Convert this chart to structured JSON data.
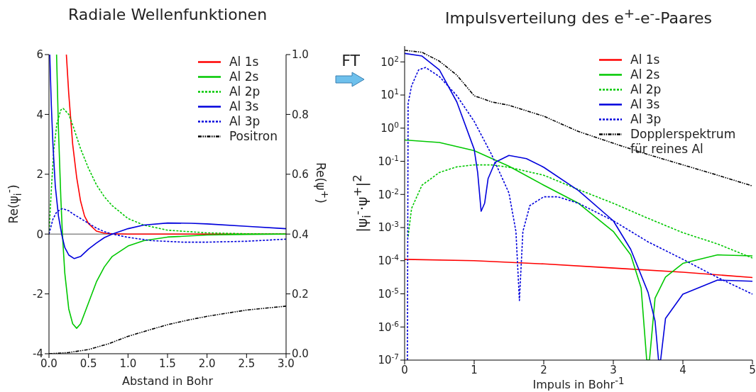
{
  "chart_data": [
    {
      "type": "line",
      "title": "Radiale Wellenfunktionen",
      "xlabel": "Abstand in Bohr",
      "ylabel": "Re(ψ$_{i}$$^{-}$)",
      "y2label": "Re(ψ$^{+}$)",
      "annotations": [
        "FT"
      ],
      "legend": "top right",
      "xlim": [
        0,
        3
      ],
      "xticks": [
        {
          "value": 0,
          "label": "0.0"
        },
        {
          "value": 0.5,
          "label": "0.5"
        },
        {
          "value": 1,
          "label": "1.0"
        },
        {
          "value": 1.5,
          "label": "1.5"
        },
        {
          "value": 2,
          "label": "2.0"
        },
        {
          "value": 2.5,
          "label": "2.5"
        },
        {
          "value": 3,
          "label": "3.0"
        }
      ],
      "ylim": [
        -4,
        6
      ],
      "yticks": [
        -4,
        -2,
        0,
        2,
        4,
        6
      ],
      "y2lim": [
        0,
        1
      ],
      "y2ticks": [
        {
          "value": 0,
          "label": "0.0"
        },
        0.2,
        0.4,
        0.6,
        0.8,
        {
          "value": 1,
          "label": "1.0"
        }
      ],
      "ref_lines": [
        {
          "axis": "y",
          "value": 0,
          "color": "#555555"
        }
      ],
      "series": [
        {
          "name": "Al 1s",
          "color": "#ff0000",
          "line_style": "solid",
          "x": [
            0.22,
            0.25,
            0.3,
            0.35,
            0.4,
            0.45,
            0.5,
            0.6,
            0.7,
            0.8,
            1.0,
            1.5,
            2.0,
            2.5,
            3.0
          ],
          "values": [
            6.0,
            4.7,
            3.0,
            1.9,
            1.1,
            0.6,
            0.35,
            0.1,
            0.03,
            0.01,
            0,
            0,
            0,
            0,
            0
          ]
        },
        {
          "name": "Al 2s",
          "color": "#00c800",
          "line_style": "solid",
          "x": [
            0.096,
            0.12,
            0.15,
            0.17,
            0.2,
            0.25,
            0.3,
            0.35,
            0.4,
            0.5,
            0.6,
            0.7,
            0.8,
            1.0,
            1.2,
            1.5,
            2.0,
            2.5,
            3.0
          ],
          "values": [
            6.0,
            3.5,
            1.2,
            0,
            -1.3,
            -2.5,
            -3.0,
            -3.15,
            -3.0,
            -2.3,
            -1.6,
            -1.1,
            -0.75,
            -0.4,
            -0.22,
            -0.1,
            -0.03,
            -0.01,
            0
          ]
        },
        {
          "name": "Al 2p",
          "color": "#00c800",
          "line_style": "dashed",
          "x": [
            0,
            0.03,
            0.06,
            0.1,
            0.15,
            0.18,
            0.25,
            0.3,
            0.4,
            0.5,
            0.6,
            0.7,
            0.8,
            1.0,
            1.2,
            1.5,
            2.0,
            2.5,
            3.0
          ],
          "values": [
            0,
            1.5,
            2.8,
            3.7,
            4.15,
            4.2,
            4.0,
            3.65,
            2.85,
            2.2,
            1.65,
            1.25,
            0.95,
            0.52,
            0.3,
            0.13,
            0.04,
            0.01,
            0
          ]
        },
        {
          "name": "Al 3s",
          "color": "#0000dc",
          "line_style": "solid",
          "x": [
            0.01,
            0.03,
            0.05,
            0.08,
            0.12,
            0.16,
            0.2,
            0.25,
            0.32,
            0.4,
            0.5,
            0.6,
            0.7,
            0.8,
            1.0,
            1.2,
            1.5,
            1.8,
            2.0,
            2.5,
            3.0
          ],
          "values": [
            6.0,
            4.3,
            3.0,
            1.6,
            0.6,
            0,
            -0.45,
            -0.7,
            -0.82,
            -0.75,
            -0.5,
            -0.3,
            -0.12,
            0,
            0.18,
            0.3,
            0.37,
            0.36,
            0.34,
            0.26,
            0.18
          ]
        },
        {
          "name": "Al 3p",
          "color": "#0000dc",
          "line_style": "dashed",
          "x": [
            0,
            0.05,
            0.1,
            0.17,
            0.25,
            0.3,
            0.4,
            0.5,
            0.6,
            0.7,
            0.8,
            1.0,
            1.3,
            1.7,
            2.0,
            2.5,
            3.0
          ],
          "values": [
            0,
            0.5,
            0.75,
            0.85,
            0.78,
            0.68,
            0.52,
            0.36,
            0.2,
            0.08,
            0,
            -0.11,
            -0.22,
            -0.27,
            -0.27,
            -0.24,
            -0.17
          ]
        },
        {
          "name": "Positron",
          "color": "#000000",
          "line_style": "dotted",
          "axis": "y2",
          "x": [
            0,
            0.25,
            0.5,
            0.75,
            1.0,
            1.25,
            1.5,
            1.75,
            2.0,
            2.5,
            3.0
          ],
          "values": [
            0,
            0.004,
            0.014,
            0.033,
            0.058,
            0.078,
            0.097,
            0.112,
            0.125,
            0.146,
            0.159
          ]
        }
      ]
    },
    {
      "type": "line",
      "title": "Impulsverteilung des e$^{+}$-e$^{-}$-Paares",
      "xlabel": "Impuls in Bohr$^{-1}$",
      "ylabel": "|ψ$_{i}$$^{-}$·ψ$^{+}$|$^{2}$",
      "legend": "top right",
      "log": "y",
      "xlim": [
        0,
        5
      ],
      "xticks": [
        0,
        1,
        2,
        3,
        4,
        5
      ],
      "ylim": [
        1e-07,
        300
      ],
      "yticks": [
        {
          "value": 1e-07,
          "label": "10$^{-7}$"
        },
        {
          "value": 1e-06,
          "label": "10$^{-6}$"
        },
        {
          "value": 1e-05,
          "label": "10$^{-5}$"
        },
        {
          "value": 0.0001,
          "label": "10$^{-4}$"
        },
        {
          "value": 0.001,
          "label": "10$^{-3}$"
        },
        {
          "value": 0.01,
          "label": "10$^{-2}$"
        },
        {
          "value": 0.1,
          "label": "10$^{-1}$"
        },
        {
          "value": 1,
          "label": "10$^{0}$"
        },
        {
          "value": 10,
          "label": "10$^{1}$"
        },
        {
          "value": 100,
          "label": "10$^{2}$"
        }
      ],
      "series": [
        {
          "name": "Al 1s",
          "color": "#ff0000",
          "line_style": "solid",
          "x": [
            0,
            1,
            2,
            3,
            4,
            5
          ],
          "values": [
            0.00011,
            0.0001,
            8e-05,
            6e-05,
            4.5e-05,
            3.1e-05
          ]
        },
        {
          "name": "Al 2s",
          "color": "#00c800",
          "line_style": "solid",
          "x": [
            0,
            0.5,
            1.0,
            1.5,
            2.0,
            2.5,
            3.0,
            3.25,
            3.4,
            3.48,
            3.52,
            3.6,
            3.75,
            4.0,
            4.5,
            5.0
          ],
          "values": [
            0.44,
            0.37,
            0.21,
            0.071,
            0.019,
            0.0054,
            0.00076,
            0.00015,
            1.5e-05,
            1e-07,
            1e-07,
            7.4e-06,
            3.2e-05,
            8.3e-05,
            0.00015,
            0.00014
          ]
        },
        {
          "name": "Al 2p",
          "color": "#00c800",
          "line_style": "dashed",
          "x": [
            0.05,
            0.1,
            0.25,
            0.5,
            0.75,
            1.0,
            1.25,
            1.5,
            2.0,
            2.5,
            3.0,
            3.5,
            4.0,
            4.5,
            5.0
          ],
          "values": [
            0.00054,
            0.0038,
            0.019,
            0.046,
            0.068,
            0.078,
            0.078,
            0.066,
            0.038,
            0.014,
            0.0054,
            0.0019,
            0.0007,
            0.00032,
            0.00012
          ]
        },
        {
          "name": "Al 3s",
          "color": "#0000dc",
          "line_style": "solid",
          "x": [
            0,
            0.25,
            0.5,
            0.75,
            1.0,
            1.05,
            1.1,
            1.15,
            1.2,
            1.3,
            1.5,
            1.75,
            2.0,
            2.5,
            3.0,
            3.25,
            3.5,
            3.6,
            3.65,
            3.68,
            3.75,
            4.0,
            4.5,
            5.0
          ],
          "values": [
            180,
            150,
            57,
            6.2,
            0.23,
            0.046,
            0.0031,
            0.0054,
            0.03,
            0.093,
            0.15,
            0.12,
            0.066,
            0.013,
            0.0016,
            0.00022,
            1.1e-05,
            1.5e-06,
            1e-07,
            1e-07,
            1.8e-06,
            9.8e-06,
            2.6e-05,
            2.4e-05
          ]
        },
        {
          "name": "Al 3p",
          "color": "#0000dc",
          "line_style": "dashed",
          "x": [
            0.04,
            0.05,
            0.1,
            0.2,
            0.3,
            0.5,
            0.75,
            1.0,
            1.25,
            1.5,
            1.6,
            1.65,
            1.7,
            1.8,
            2.0,
            2.2,
            2.5,
            3.0,
            3.5,
            4.0,
            4.5,
            5.0
          ],
          "values": [
            1e-07,
            5.6,
            19,
            57,
            68,
            36,
            9.6,
            1.6,
            0.16,
            0.011,
            0.00076,
            6.3e-06,
            0.00076,
            0.0046,
            0.0085,
            0.0085,
            0.0054,
            0.0016,
            0.00037,
            0.00011,
            3.1e-05,
            9.8e-06
          ]
        },
        {
          "name": "Dopplerspektrum für reines Al",
          "color": "#000000",
          "line_style": "dotted",
          "x": [
            0,
            0.25,
            0.5,
            0.75,
            1.0,
            1.25,
            1.5,
            2.0,
            2.5,
            3.0,
            3.5,
            4.0,
            4.5,
            5.0
          ],
          "values": [
            224,
            195,
            105,
            40,
            9.5,
            6.2,
            4.9,
            2.3,
            0.79,
            0.35,
            0.16,
            0.078,
            0.038,
            0.018
          ]
        }
      ]
    }
  ]
}
